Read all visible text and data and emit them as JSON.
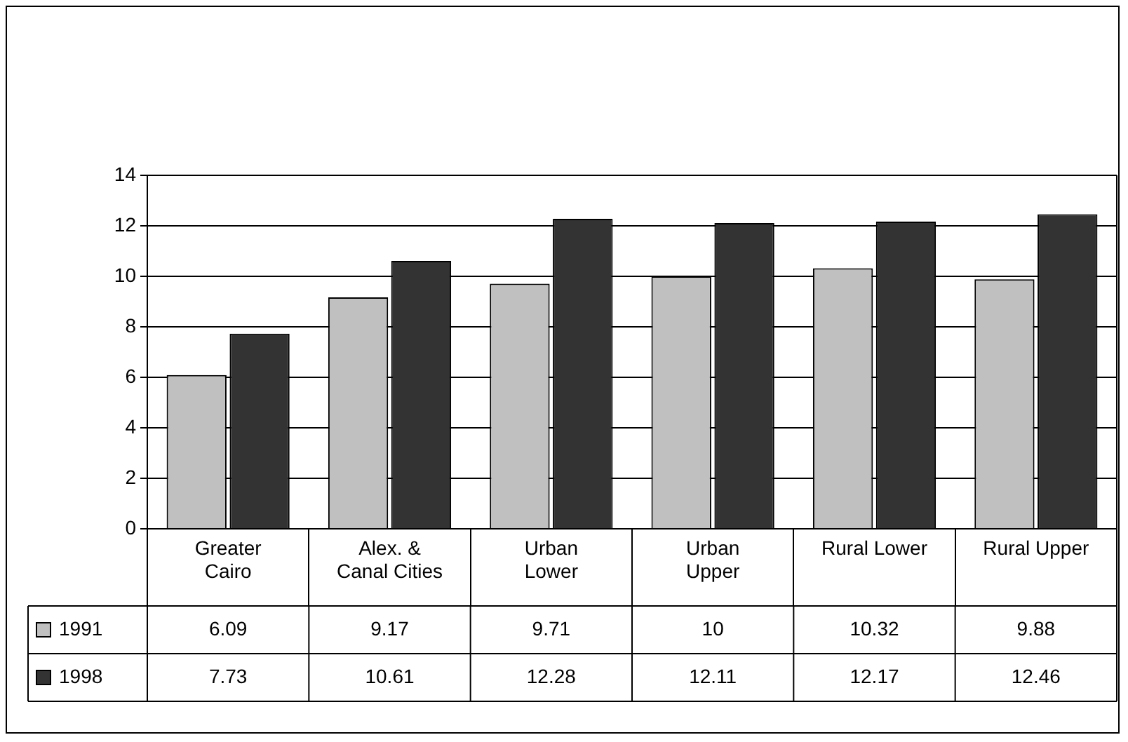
{
  "chart_data": {
    "type": "bar",
    "categories": [
      "Greater Cairo",
      "Alex. & Canal Cities",
      "Urban Lower",
      "Urban Upper",
      "Rural Lower",
      "Rural Upper"
    ],
    "series": [
      {
        "name": "1991",
        "color": "#c0c0c0",
        "values": [
          6.09,
          9.17,
          9.71,
          10,
          10.32,
          9.88
        ]
      },
      {
        "name": "1998",
        "color": "#333333",
        "values": [
          7.73,
          10.61,
          12.28,
          12.11,
          12.17,
          12.46
        ]
      }
    ],
    "ylim": [
      0,
      14
    ],
    "yticks": [
      0,
      2,
      4,
      6,
      8,
      10,
      12,
      14
    ],
    "grid": "y",
    "legend": "bottom",
    "data_labels": true
  }
}
